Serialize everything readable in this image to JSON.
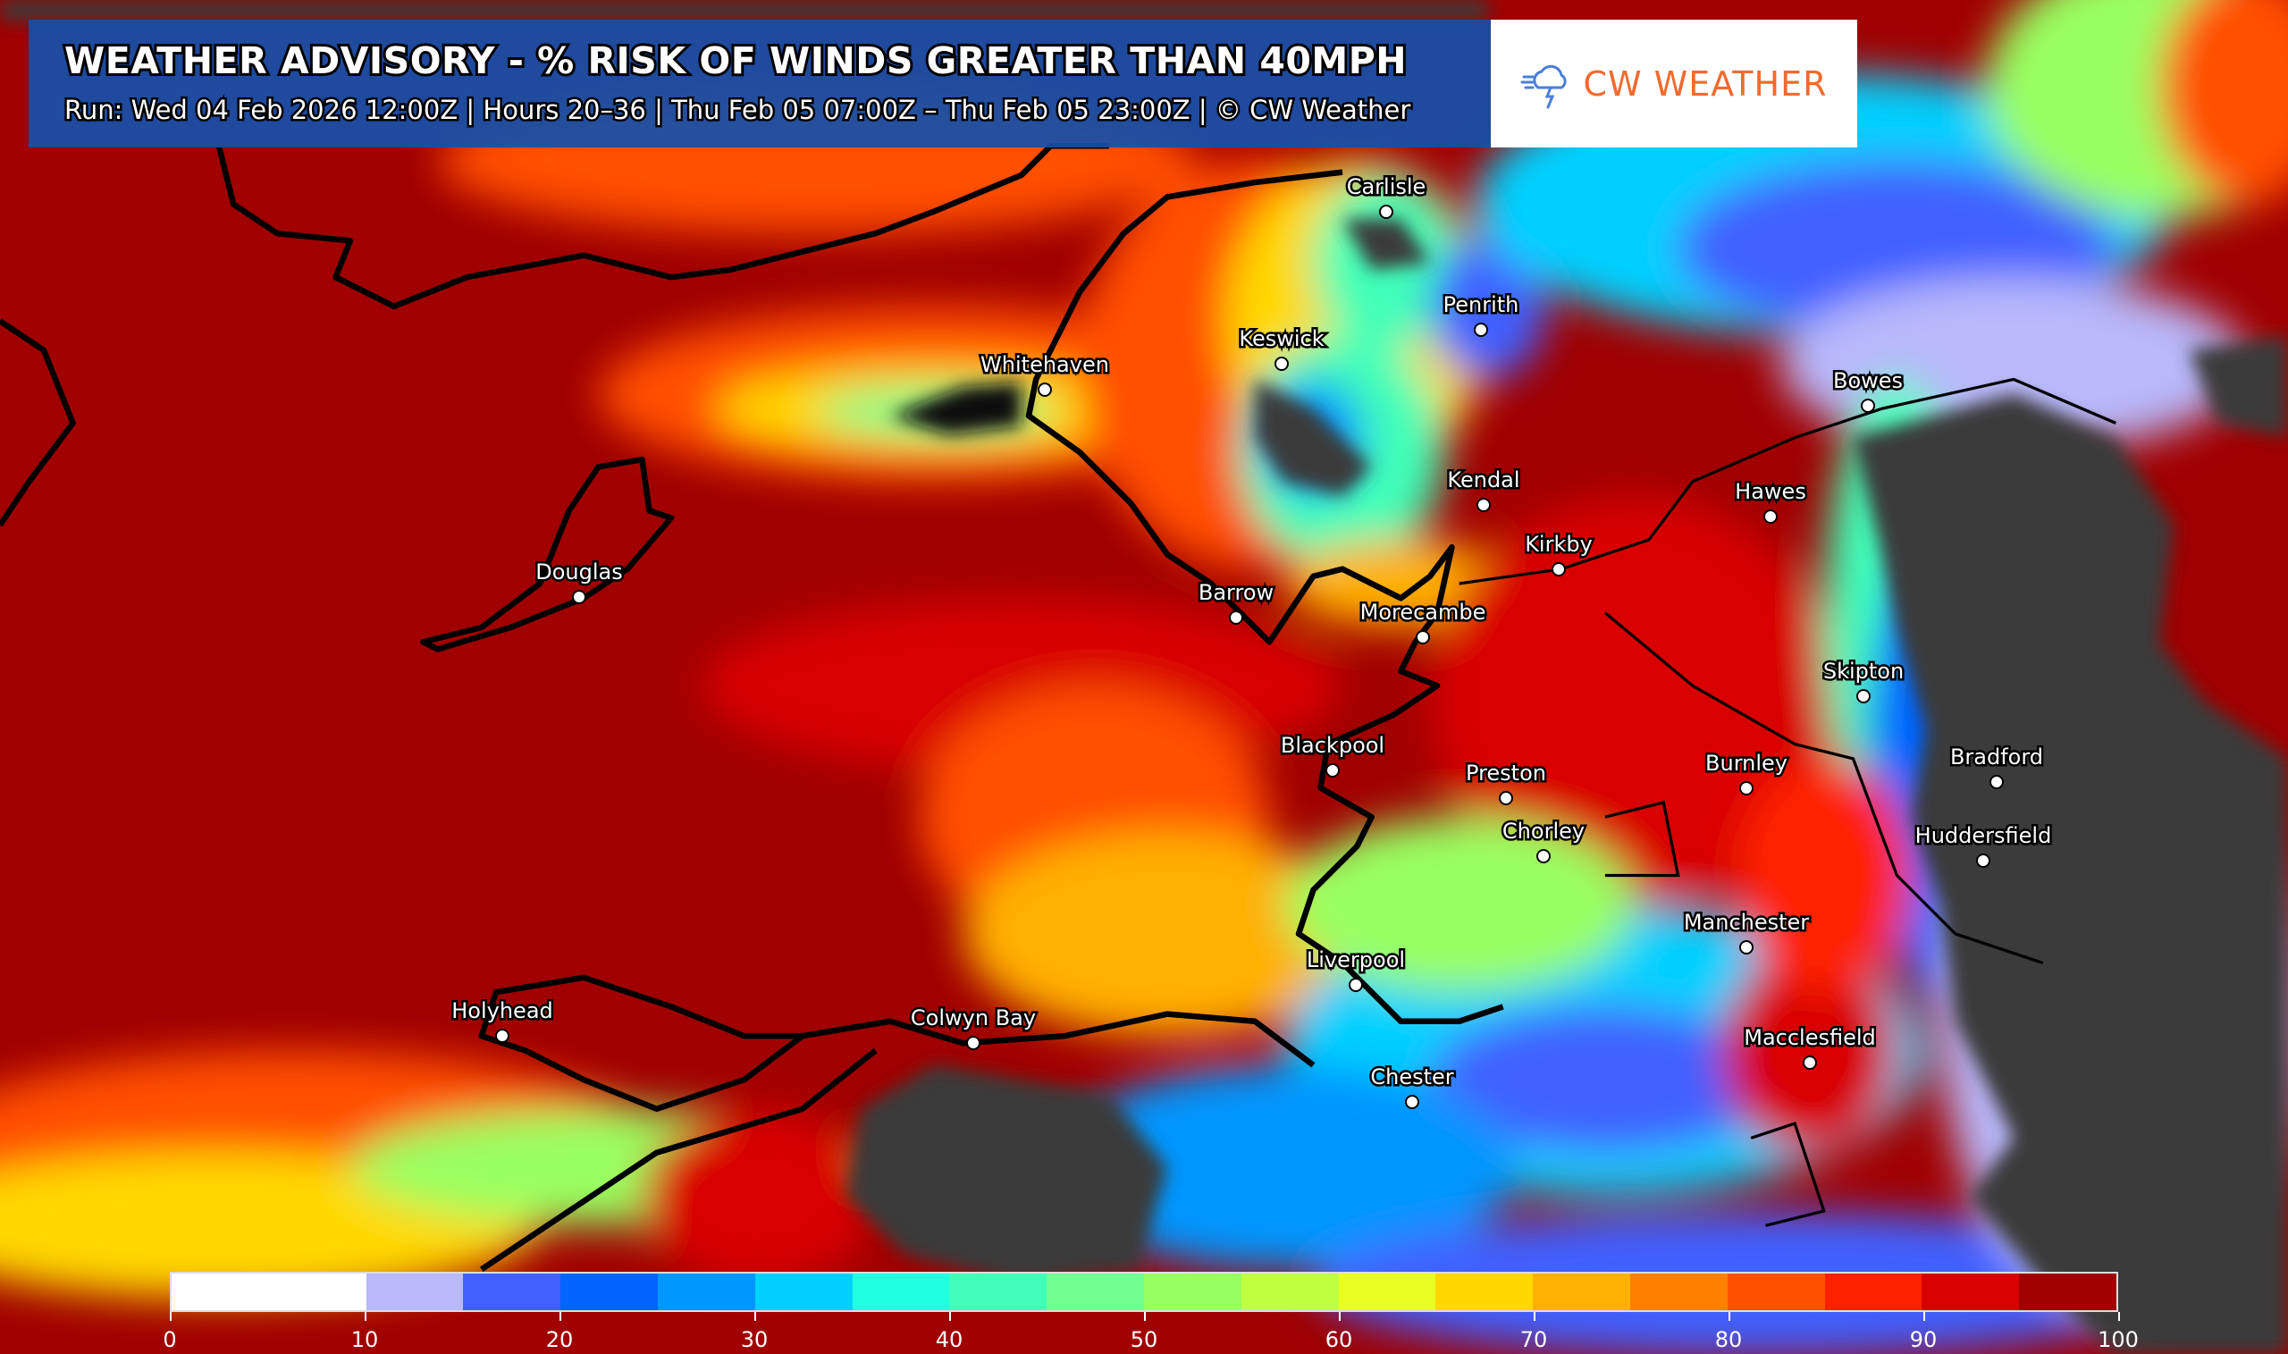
{
  "header": {
    "title": "WEATHER ADVISORY - % RISK OF WINDS GREATER THAN 40MPH",
    "subtitle": "Run: Wed 04 Feb 2026 12:00Z | Hours 20–36 | Thu Feb 05 07:00Z – Thu Feb 05 23:00Z | © CW Weather"
  },
  "logo": {
    "text": "CW WEATHER",
    "icon": "cloud-lightning-wind-icon",
    "color": "#f26a2e"
  },
  "cities": [
    {
      "name": "Carlisle"
    },
    {
      "name": "Penrith"
    },
    {
      "name": "Keswick"
    },
    {
      "name": "Whitehaven"
    },
    {
      "name": "Bowes"
    },
    {
      "name": "Hawes"
    },
    {
      "name": "Kendal"
    },
    {
      "name": "Kirkby"
    },
    {
      "name": "Douglas"
    },
    {
      "name": "Barrow"
    },
    {
      "name": "Morecambe"
    },
    {
      "name": "Skipton"
    },
    {
      "name": "Blackpool"
    },
    {
      "name": "Preston"
    },
    {
      "name": "Burnley"
    },
    {
      "name": "Bradford"
    },
    {
      "name": "Chorley"
    },
    {
      "name": "Huddersfield"
    },
    {
      "name": "Manchester"
    },
    {
      "name": "Liverpool"
    },
    {
      "name": "Holyhead"
    },
    {
      "name": "Colwyn Bay"
    },
    {
      "name": "Macclesfield"
    },
    {
      "name": "Chester"
    }
  ],
  "colorbar": {
    "bounds": [
      0,
      10,
      15,
      20,
      25,
      30,
      35,
      40,
      45,
      50,
      55,
      60,
      65,
      70,
      75,
      80,
      85,
      90,
      95,
      100
    ],
    "colors": [
      "#ffffff",
      "#b8b8fa",
      "#4060ff",
      "#0064ff",
      "#0096ff",
      "#00d0ff",
      "#20ffe0",
      "#40ffb8",
      "#70ff90",
      "#98ff60",
      "#c0ff40",
      "#e8ff20",
      "#ffd800",
      "#ffb000",
      "#ff8000",
      "#ff5000",
      "#ff2000",
      "#d80000",
      "#a00000"
    ],
    "tick_labels": [
      "0",
      "10",
      "20",
      "30",
      "40",
      "50",
      "60",
      "70",
      "80",
      "90",
      "100"
    ]
  },
  "colors": {
    "no_data_land": "#3a3a3a",
    "header_bg": "#1450aa"
  }
}
